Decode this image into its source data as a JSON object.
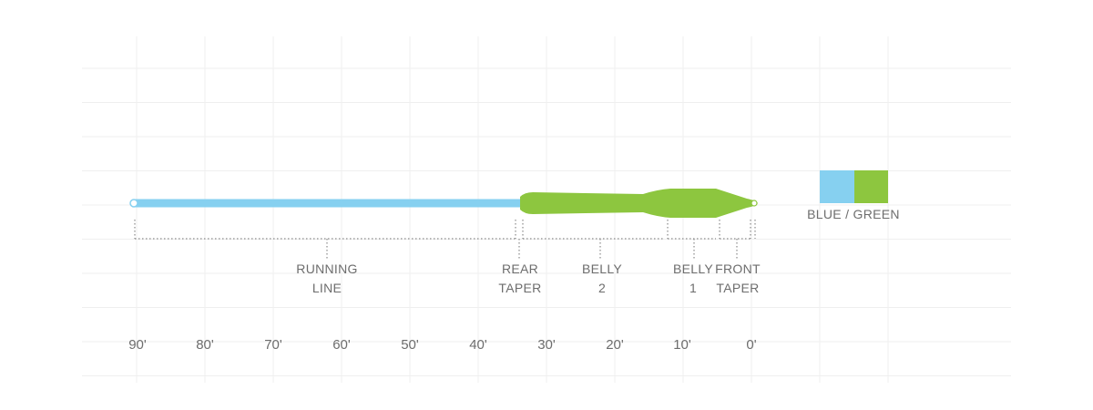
{
  "colors": {
    "blue": "#86d0f0",
    "green": "#8dc63f",
    "grid": "#efefef",
    "bracket": "#8a8a8a",
    "text": "#6d6d6d"
  },
  "segments": [
    {
      "id": "running-line",
      "lines": [
        "RUNNING",
        "LINE"
      ]
    },
    {
      "id": "rear-taper",
      "lines": [
        "REAR",
        "TAPER"
      ]
    },
    {
      "id": "belly-2",
      "lines": [
        "BELLY",
        "2"
      ]
    },
    {
      "id": "belly-1",
      "lines": [
        "BELLY",
        "1"
      ]
    },
    {
      "id": "front-taper",
      "lines": [
        "FRONT",
        "TAPER"
      ]
    }
  ],
  "axis": {
    "ticks": [
      "90'",
      "80'",
      "70'",
      "60'",
      "50'",
      "40'",
      "30'",
      "20'",
      "10'",
      "0'"
    ]
  },
  "legend": {
    "label": "BLUE / GREEN",
    "swatches": [
      "#86d0f0",
      "#8dc63f"
    ]
  }
}
